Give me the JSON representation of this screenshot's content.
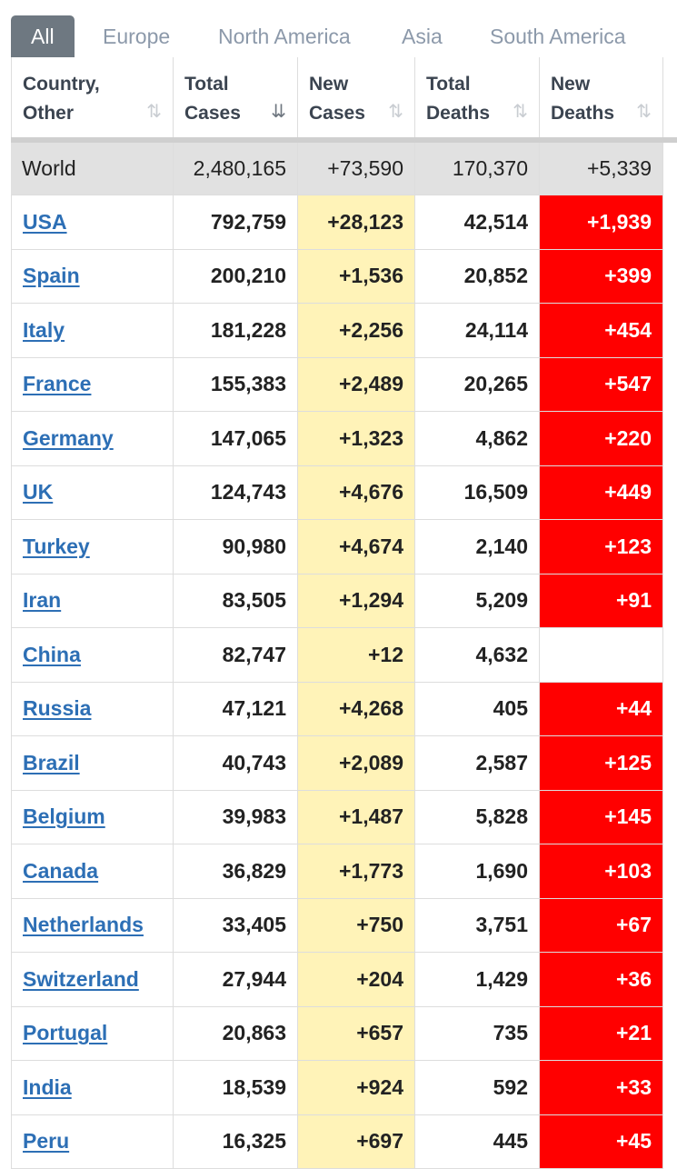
{
  "tabs": [
    "All",
    "Europe",
    "North America",
    "Asia",
    "South America"
  ],
  "columns": [
    {
      "line1": "Country,",
      "line2": "Other",
      "sort": "⇅"
    },
    {
      "line1": "Total",
      "line2": "Cases",
      "sort": "⇊"
    },
    {
      "line1": "New",
      "line2": "Cases",
      "sort": "⇅"
    },
    {
      "line1": "Total",
      "line2": "Deaths",
      "sort": "⇅"
    },
    {
      "line1": "New",
      "line2": "Deaths",
      "sort": "⇅"
    }
  ],
  "world": {
    "country": "World",
    "total_cases": "2,480,165",
    "new_cases": "+73,590",
    "total_deaths": "170,370",
    "new_deaths": "+5,339"
  },
  "rows": [
    {
      "country": "USA",
      "total_cases": "792,759",
      "new_cases": "+28,123",
      "total_deaths": "42,514",
      "new_deaths": "+1,939"
    },
    {
      "country": "Spain",
      "total_cases": "200,210",
      "new_cases": "+1,536",
      "total_deaths": "20,852",
      "new_deaths": "+399"
    },
    {
      "country": "Italy",
      "total_cases": "181,228",
      "new_cases": "+2,256",
      "total_deaths": "24,114",
      "new_deaths": "+454"
    },
    {
      "country": "France",
      "total_cases": "155,383",
      "new_cases": "+2,489",
      "total_deaths": "20,265",
      "new_deaths": "+547"
    },
    {
      "country": "Germany",
      "total_cases": "147,065",
      "new_cases": "+1,323",
      "total_deaths": "4,862",
      "new_deaths": "+220"
    },
    {
      "country": "UK",
      "total_cases": "124,743",
      "new_cases": "+4,676",
      "total_deaths": "16,509",
      "new_deaths": "+449"
    },
    {
      "country": "Turkey",
      "total_cases": "90,980",
      "new_cases": "+4,674",
      "total_deaths": "2,140",
      "new_deaths": "+123"
    },
    {
      "country": "Iran",
      "total_cases": "83,505",
      "new_cases": "+1,294",
      "total_deaths": "5,209",
      "new_deaths": "+91"
    },
    {
      "country": "China",
      "total_cases": "82,747",
      "new_cases": "+12",
      "total_deaths": "4,632",
      "new_deaths": ""
    },
    {
      "country": "Russia",
      "total_cases": "47,121",
      "new_cases": "+4,268",
      "total_deaths": "405",
      "new_deaths": "+44"
    },
    {
      "country": "Brazil",
      "total_cases": "40,743",
      "new_cases": "+2,089",
      "total_deaths": "2,587",
      "new_deaths": "+125"
    },
    {
      "country": "Belgium",
      "total_cases": "39,983",
      "new_cases": "+1,487",
      "total_deaths": "5,828",
      "new_deaths": "+145"
    },
    {
      "country": "Canada",
      "total_cases": "36,829",
      "new_cases": "+1,773",
      "total_deaths": "1,690",
      "new_deaths": "+103"
    },
    {
      "country": "Netherlands",
      "total_cases": "33,405",
      "new_cases": "+750",
      "total_deaths": "3,751",
      "new_deaths": "+67"
    },
    {
      "country": "Switzerland",
      "total_cases": "27,944",
      "new_cases": "+204",
      "total_deaths": "1,429",
      "new_deaths": "+36"
    },
    {
      "country": "Portugal",
      "total_cases": "20,863",
      "new_cases": "+657",
      "total_deaths": "735",
      "new_deaths": "+21"
    },
    {
      "country": "India",
      "total_cases": "18,539",
      "new_cases": "+924",
      "total_deaths": "592",
      "new_deaths": "+33"
    },
    {
      "country": "Peru",
      "total_cases": "16,325",
      "new_cases": "+697",
      "total_deaths": "445",
      "new_deaths": "+45"
    }
  ],
  "colors": {
    "new_cases_bg": "#fff3b8",
    "new_deaths_bg": "#ff0000",
    "link": "#2d6fb5",
    "active_tab_bg": "#6e7881",
    "world_bg": "#e1e1e1"
  }
}
